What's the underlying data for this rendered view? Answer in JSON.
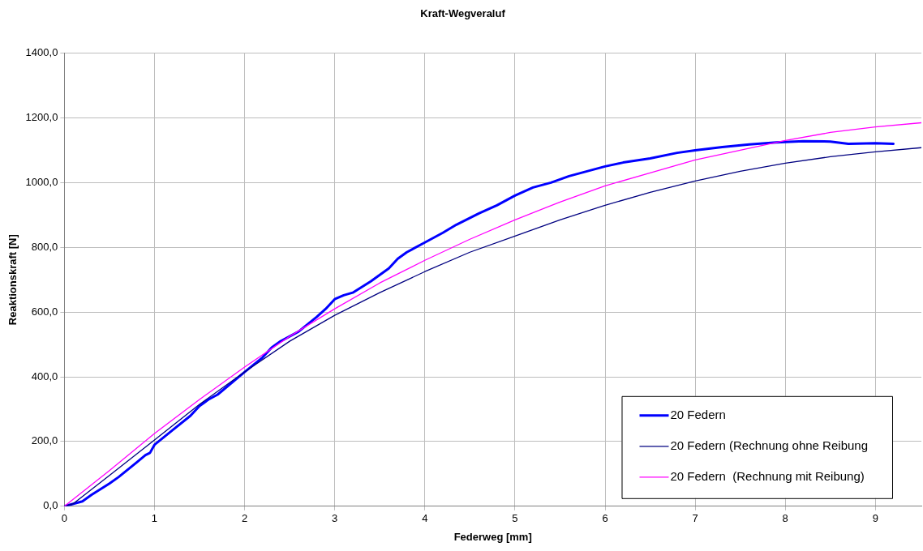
{
  "chart_data": {
    "type": "line",
    "title": "Kraft-Wegveraluf",
    "xlabel": "Federweg [mm]",
    "ylabel": "Reaktionskraft [N]",
    "xlim": [
      0,
      9.51
    ],
    "xticks": [
      0,
      1,
      2,
      3,
      4,
      5,
      6,
      7,
      8,
      9
    ],
    "ylim": [
      0,
      1400
    ],
    "yticks": [
      {
        "value": 0,
        "label": "0,0"
      },
      {
        "value": 200,
        "label": "200,0"
      },
      {
        "value": 400,
        "label": "400,0"
      },
      {
        "value": 600,
        "label": "600,0"
      },
      {
        "value": 800,
        "label": "800,0"
      },
      {
        "value": 1000,
        "label": "1000,0"
      },
      {
        "value": 1200,
        "label": "1200,0"
      },
      {
        "value": 1400,
        "label": "1400,0"
      }
    ],
    "grid": true,
    "legend": "bottom right",
    "marker": "none",
    "line_style": "solid",
    "series": [
      {
        "name": "20 Federn",
        "color": "#0000ff",
        "x": [
          0,
          0.2,
          0.3,
          0.5,
          0.6,
          0.8,
          0.9,
          0.95,
          1.0,
          1.2,
          1.4,
          1.5,
          1.6,
          1.7,
          2.0,
          2.2,
          2.3,
          2.4,
          2.6,
          2.8,
          2.9,
          3.0,
          3.1,
          3.2,
          3.4,
          3.6,
          3.7,
          3.8,
          4.0,
          4.2,
          4.35,
          4.6,
          4.8,
          5.0,
          5.2,
          5.4,
          5.6,
          5.8,
          6.0,
          6.2,
          6.5,
          6.8,
          7.0,
          7.3,
          7.6,
          7.9,
          8.2,
          8.5,
          8.7,
          9.0,
          9.2
        ],
        "values": [
          0,
          15,
          35,
          70,
          90,
          135,
          158,
          165,
          190,
          235,
          280,
          310,
          330,
          345,
          415,
          460,
          490,
          510,
          540,
          585,
          610,
          640,
          652,
          660,
          695,
          735,
          765,
          785,
          815,
          845,
          870,
          905,
          930,
          960,
          985,
          1000,
          1020,
          1035,
          1050,
          1062,
          1075,
          1092,
          1100,
          1110,
          1118,
          1124,
          1128,
          1127,
          1120,
          1122,
          1120
        ]
      },
      {
        "name": "20 Federn (Rechnung ohne Reibung",
        "color": "#000080",
        "x": [
          0,
          0.1,
          0.5,
          1,
          1.5,
          2,
          2.5,
          3,
          3.5,
          4,
          4.5,
          5,
          5.5,
          6,
          6.5,
          7,
          7.5,
          8,
          8.5,
          9,
          9.51
        ],
        "values": [
          0,
          8,
          95,
          205,
          315,
          415,
          510,
          590,
          660,
          725,
          785,
          835,
          885,
          930,
          970,
          1005,
          1035,
          1060,
          1080,
          1095,
          1108
        ]
      },
      {
        "name": "20 Federn  (Rechnung mit Reibung)",
        "color": "#ff00ff",
        "x": [
          0,
          0.5,
          1,
          1.5,
          2,
          2.5,
          3,
          3.5,
          4,
          4.5,
          5,
          5.5,
          6,
          6.5,
          7,
          7.5,
          8,
          8.5,
          9,
          9.51
        ],
        "values": [
          0,
          110,
          225,
          330,
          430,
          525,
          610,
          690,
          760,
          825,
          885,
          940,
          990,
          1030,
          1070,
          1100,
          1130,
          1155,
          1172,
          1185
        ]
      }
    ]
  }
}
